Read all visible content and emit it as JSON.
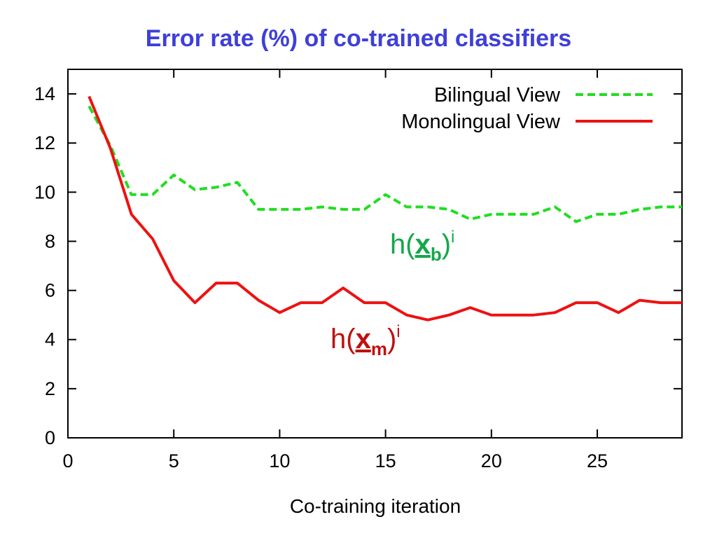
{
  "chart_data": {
    "type": "line",
    "title": "Error rate (%) of co-trained classifiers",
    "xlabel": "Co-training iteration",
    "ylabel": "",
    "xlim": [
      0,
      29
    ],
    "ylim": [
      0,
      15
    ],
    "xticks": [
      "0",
      "5",
      "10",
      "15",
      "20",
      "25"
    ],
    "yticks": [
      "0",
      "2",
      "4",
      "6",
      "8",
      "10",
      "12",
      "14"
    ],
    "grid": false,
    "legend_position": "top-right",
    "x": [
      1,
      2,
      3,
      4,
      5,
      6,
      7,
      8,
      9,
      10,
      11,
      12,
      13,
      14,
      15,
      16,
      17,
      18,
      19,
      20,
      21,
      22,
      23,
      24,
      25,
      26,
      27,
      28,
      29
    ],
    "series": [
      {
        "name": "Bilingual View",
        "color": "#22dd22",
        "style": "dashed",
        "values": [
          13.5,
          11.9,
          9.9,
          9.9,
          10.7,
          10.1,
          10.2,
          10.4,
          9.3,
          9.3,
          9.3,
          9.4,
          9.3,
          9.3,
          9.9,
          9.4,
          9.4,
          9.3,
          8.9,
          9.1,
          9.1,
          9.1,
          9.4,
          8.8,
          9.1,
          9.1,
          9.3,
          9.4,
          9.4
        ]
      },
      {
        "name": "Monolingual View",
        "color": "#ee1111",
        "style": "solid",
        "values": [
          13.9,
          11.8,
          9.1,
          8.1,
          6.4,
          5.5,
          6.3,
          6.3,
          5.6,
          5.1,
          5.5,
          5.5,
          6.1,
          5.5,
          5.5,
          5.0,
          4.8,
          5.0,
          5.3,
          5.0,
          5.0,
          5.0,
          5.1,
          5.5,
          5.5,
          5.1,
          5.6,
          5.5,
          5.5
        ]
      }
    ],
    "annotations": [
      {
        "prefix": "h(",
        "bold": "x",
        "sub": "b",
        "suffix": ")",
        "sup": "i",
        "color": "#14a84a"
      },
      {
        "prefix": "h(",
        "bold": "x",
        "sub": "m",
        "suffix": ")",
        "sup": "i",
        "color": "#c01010"
      }
    ]
  }
}
